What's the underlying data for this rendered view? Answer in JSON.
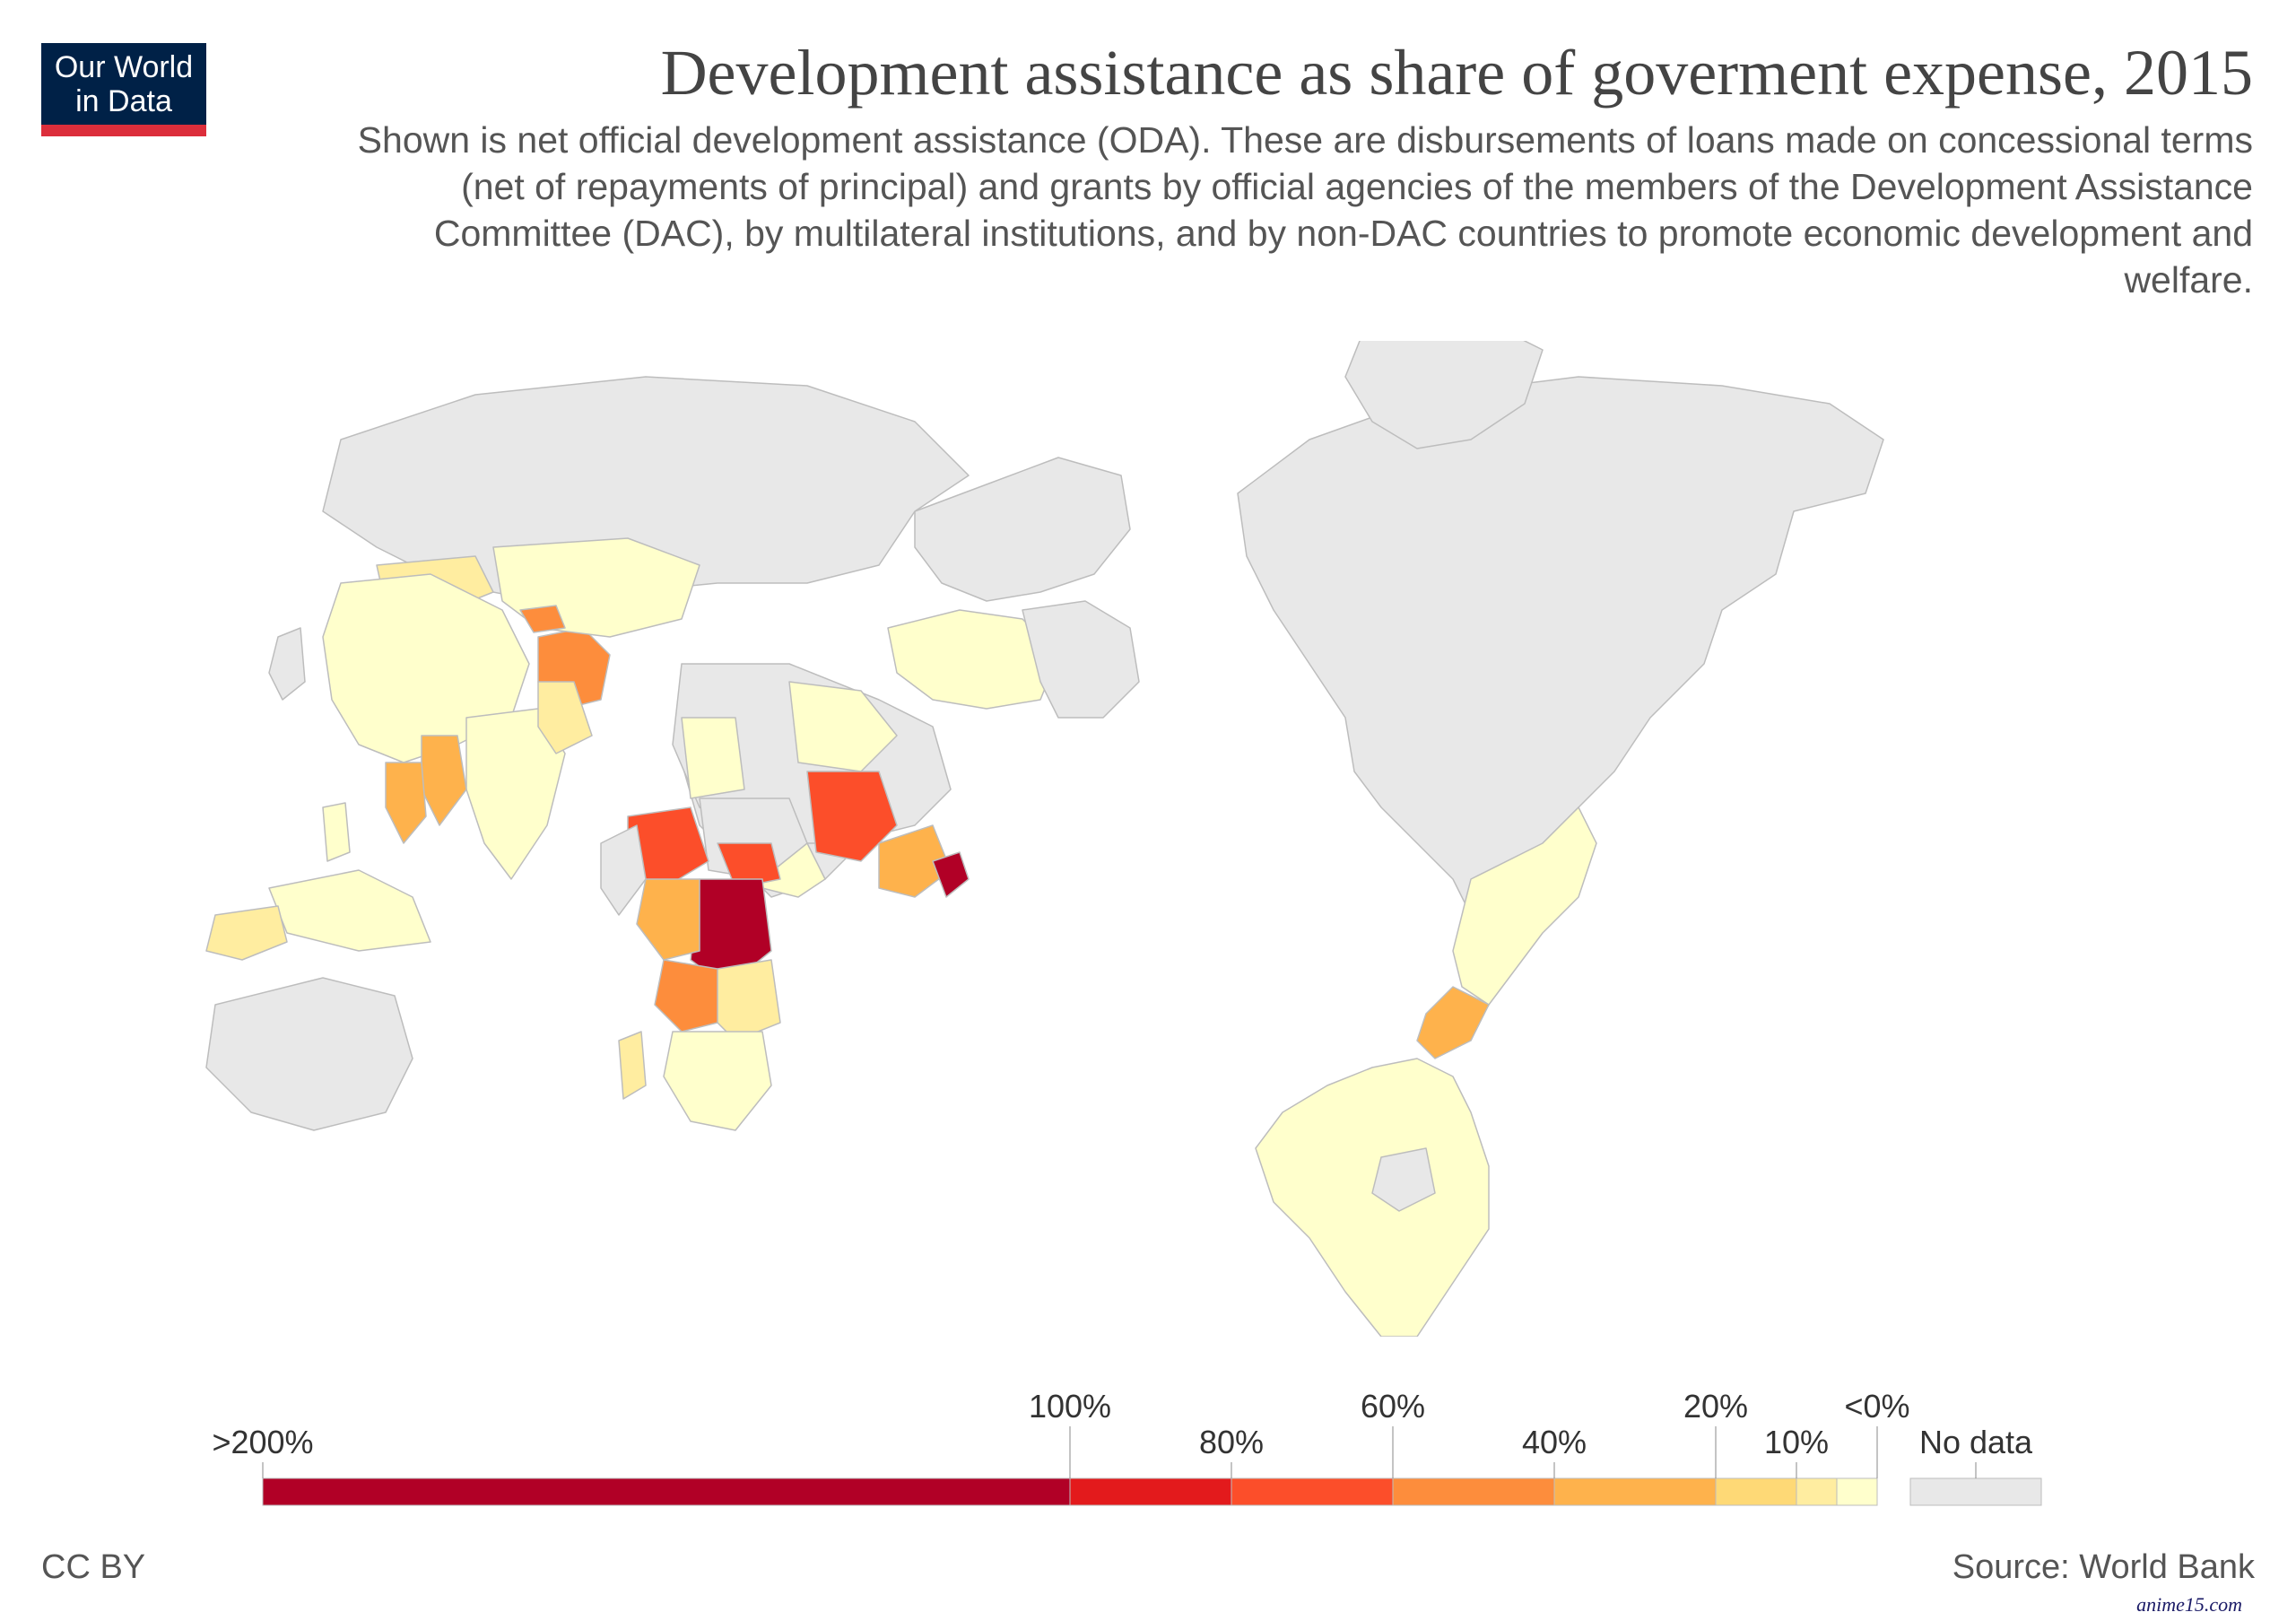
{
  "header": {
    "title": "Development assistance as share of goverment expense, 2015",
    "subtitle": "Shown is net official development assistance (ODA). These are disbursements of loans made on concessional terms (net of repayments of principal) and grants by official agencies of the members of the Development Assistance Committee (DAC), by multilateral institutions, and by non-DAC countries to promote economic development and welfare."
  },
  "logo": {
    "line1": "Our World",
    "line2": "in Data",
    "background": "#002147",
    "accent": "#dc2e3b"
  },
  "legend": {
    "no_data_label": "No data",
    "no_data_color": "#e8e8e8",
    "upper_labels": [
      "<0%",
      "20%",
      "60%",
      "100%"
    ],
    "lower_labels": [
      "10%",
      "40%",
      "80%",
      ">200%"
    ],
    "bins": [
      {
        "from": "<0%",
        "to": "0%",
        "color": "#ffffcc"
      },
      {
        "from": "0%",
        "to": "10%",
        "color": "#ffeda0"
      },
      {
        "from": "10%",
        "to": "20%",
        "color": "#fed976"
      },
      {
        "from": "20%",
        "to": "40%",
        "color": "#feb24c"
      },
      {
        "from": "40%",
        "to": "60%",
        "color": "#fd8d3c"
      },
      {
        "from": "60%",
        "to": "80%",
        "color": "#fc4e2a"
      },
      {
        "from": "80%",
        "to": "100%",
        "color": "#e31a1c"
      },
      {
        "from": "100%",
        "to": ">200%",
        "color": "#b10026"
      }
    ]
  },
  "colors": {
    "no_data": "#e8e8e8",
    "ocean": "#ffffff",
    "border": "#bdbdbd"
  },
  "footer": {
    "source": "Source: World Bank",
    "license": "CC BY",
    "watermark": "anime15.com"
  }
}
